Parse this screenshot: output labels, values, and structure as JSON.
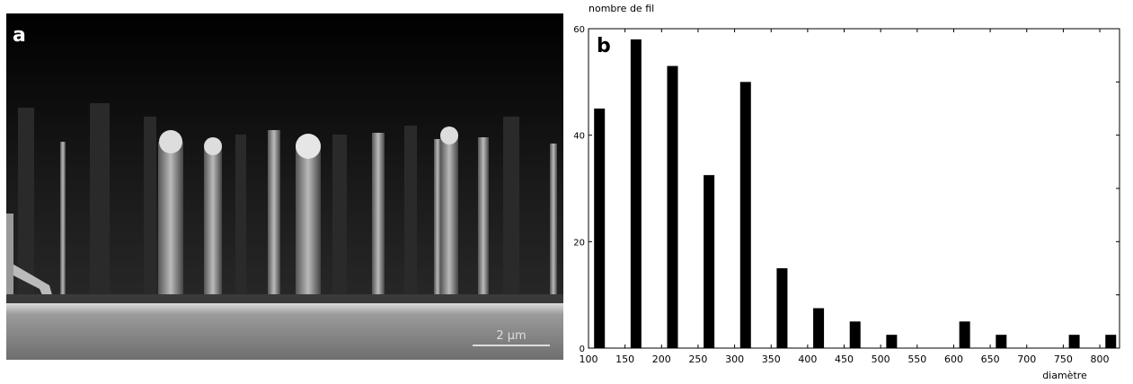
{
  "image_panel": {
    "label": "a",
    "scale_bar": "2 µm"
  },
  "chart_data": {
    "type": "bar",
    "panel_label": "b",
    "y_label": "nombre de fil",
    "x_label": "diamètre",
    "x": [
      115,
      165,
      215,
      265,
      315,
      365,
      415,
      465,
      515,
      615,
      665,
      765,
      815
    ],
    "values": [
      45,
      58,
      53,
      32.5,
      50,
      15,
      7.5,
      5,
      2.5,
      5,
      2.5,
      2.5,
      2.5
    ],
    "color": "#000000",
    "xlim": [
      100,
      827
    ],
    "xticks": [
      100,
      150,
      200,
      250,
      300,
      350,
      400,
      450,
      500,
      550,
      600,
      650,
      700,
      750,
      800
    ],
    "ylim": [
      0,
      60
    ],
    "yticks": [
      0,
      20,
      40,
      60
    ],
    "y_minor_ticks": [
      10,
      30,
      50
    ]
  }
}
